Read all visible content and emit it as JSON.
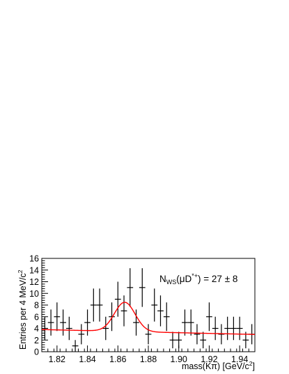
{
  "chart_data": {
    "type": "scatter",
    "title": "",
    "xlabel": "mass(Kπ) [GeV/c",
    "xlabel_sup": "2",
    "xlabel_end": "]",
    "ylabel": "Entries per 4 MeV/c",
    "ylabel_sup": "2",
    "xlim": [
      1.81,
      1.95
    ],
    "ylim": [
      0,
      16
    ],
    "x_ticks": [
      1.82,
      1.84,
      1.86,
      1.88,
      1.9,
      1.92,
      1.94
    ],
    "x_tick_labels": [
      "1.82",
      "1.84",
      "1.86",
      "1.88",
      "1.90",
      "1.92",
      "1.94"
    ],
    "y_ticks": [
      0,
      2,
      4,
      6,
      8,
      10,
      12,
      14,
      16
    ],
    "y_tick_labels": [
      "0",
      "2",
      "4",
      "6",
      "8",
      "10",
      "12",
      "14",
      "16"
    ],
    "grid": false,
    "annotation": {
      "prefix": "N",
      "sub": "WS",
      "paren_open": "(μD",
      "sup": "*+",
      "rest": ") = 27 ± 8"
    },
    "data_points": {
      "bin_width": 0.004,
      "x": [
        1.812,
        1.816,
        1.82,
        1.824,
        1.828,
        1.832,
        1.836,
        1.84,
        1.844,
        1.848,
        1.852,
        1.856,
        1.86,
        1.864,
        1.868,
        1.872,
        1.876,
        1.88,
        1.884,
        1.888,
        1.892,
        1.896,
        1.9,
        1.904,
        1.908,
        1.912,
        1.916,
        1.92,
        1.924,
        1.928,
        1.932,
        1.936,
        1.94,
        1.944,
        1.948
      ],
      "y": [
        4,
        5,
        6,
        5,
        4,
        1,
        3,
        5,
        8,
        8,
        4,
        6,
        9,
        7,
        11,
        5,
        11,
        3,
        8,
        7,
        6,
        2,
        2,
        5,
        5,
        3,
        2,
        6,
        4,
        3,
        4,
        4,
        4,
        2,
        3
      ]
    },
    "fit": {
      "name": "fit",
      "color": "#ff0000",
      "background": 3.5,
      "background_slope": -6.0,
      "mean": 1.8645,
      "sigma": 0.0068,
      "amplitude": 5.0
    }
  }
}
